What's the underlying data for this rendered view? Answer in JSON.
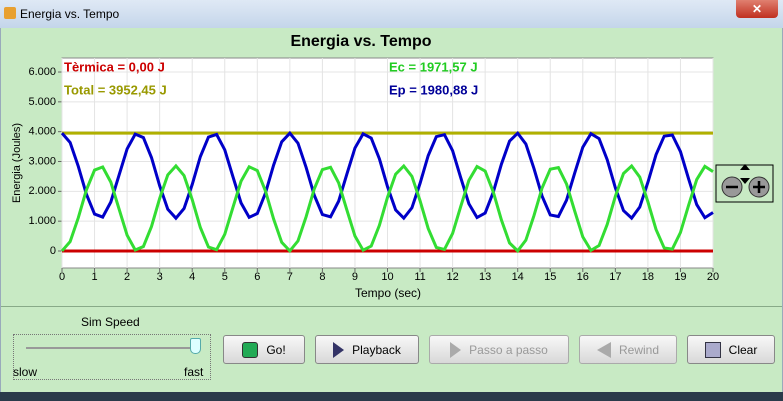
{
  "window": {
    "title": "Energia vs. Tempo"
  },
  "chart_data": {
    "type": "line",
    "title": "Energia vs. Tempo",
    "x_label": "Tempo (sec)",
    "y_label": "Energia (Joules)",
    "xlim": [
      0,
      20
    ],
    "xticks": [
      0,
      1,
      2,
      3,
      4,
      5,
      6,
      7,
      8,
      9,
      10,
      11,
      12,
      13,
      14,
      15,
      16,
      17,
      18,
      19,
      20
    ],
    "ylim": [
      -570,
      6470
    ],
    "yticks": [
      0,
      {
        "value": 1000,
        "label": "1.000"
      },
      {
        "value": 2000,
        "label": "2.000"
      },
      {
        "value": 3000,
        "label": "3.000"
      },
      {
        "value": 4000,
        "label": "4.000"
      },
      {
        "value": 5000,
        "label": "5.000"
      },
      {
        "value": 6000,
        "label": "6.000"
      }
    ],
    "grid": true,
    "x": [
      0,
      0.25,
      0.5,
      0.75,
      1,
      1.25,
      1.5,
      1.75,
      2,
      2.25,
      2.5,
      2.75,
      3,
      3.25,
      3.5,
      3.75,
      4,
      4.25,
      4.5,
      4.75,
      5,
      5.25,
      5.5,
      5.75,
      6,
      6.25,
      6.5,
      6.75,
      7,
      7.25,
      7.5,
      7.75,
      8,
      8.25,
      8.5,
      8.75,
      9,
      9.25,
      9.5,
      9.75,
      10,
      10.25,
      10.5,
      10.75,
      11,
      11.25,
      11.5,
      11.75,
      12,
      12.25,
      12.5,
      12.75,
      13,
      13.25,
      13.5,
      13.75,
      14,
      14.25,
      14.5,
      14.75,
      15,
      15.25,
      15.5,
      15.75,
      16,
      16.25,
      16.5,
      16.75,
      17,
      17.25,
      17.5,
      17.75,
      18,
      18.25,
      18.5,
      18.75,
      19,
      19.25,
      19.5,
      19.75,
      20
    ],
    "series": [
      {
        "color": "#b0b000",
        "x": [
          0,
          20
        ],
        "values": [
          3952.45,
          3952.45
        ]
      },
      {
        "color": "#cc0000",
        "x": [
          0,
          20
        ],
        "values": [
          0,
          0
        ]
      },
      {
        "color": "#0000c8",
        "values": [
          3950,
          3638,
          2840,
          1903,
          1239,
          1137,
          1643,
          2535,
          3422,
          3917,
          3803,
          3130,
          2192,
          1400,
          1100,
          1424,
          2229,
          3164,
          3819,
          3908,
          3392,
          2497,
          1614,
          1129,
          1256,
          1938,
          2876,
          3661,
          3949,
          3614,
          2802,
          1869,
          1223,
          1146,
          1672,
          2572,
          3451,
          3925,
          3786,
          3095,
          2155,
          1377,
          1101,
          1448,
          2266,
          3197,
          3835,
          3899,
          3362,
          2459,
          1585,
          1122,
          1273,
          1972,
          2913,
          3684,
          3948,
          3589,
          2765,
          1836,
          1208,
          1156,
          1703,
          2610,
          3480,
          3931,
          3768,
          3060,
          2119,
          1355,
          1103,
          1473,
          2304,
          3230,
          3849,
          3888,
          3332,
          2421,
          1556,
          1116,
          1292
        ]
      },
      {
        "color": "#33dd33",
        "values": [
          2,
          314,
          1112,
          2049,
          2713,
          2815,
          2309,
          1417,
          530,
          35,
          149,
          822,
          1760,
          2552,
          2852,
          2528,
          1723,
          788,
          133,
          44,
          560,
          1456,
          2338,
          2823,
          2696,
          2015,
          1076,
          291,
          3,
          338,
          1150,
          2083,
          2729,
          2806,
          2280,
          1380,
          501,
          27,
          166,
          857,
          1797,
          2575,
          2851,
          2504,
          1686,
          755,
          117,
          53,
          590,
          1493,
          2367,
          2830,
          2679,
          1980,
          1039,
          268,
          4,
          363,
          1187,
          2116,
          2744,
          2796,
          2249,
          1342,
          472,
          21,
          184,
          892,
          1833,
          2597,
          2849,
          2479,
          1648,
          722,
          103,
          64,
          620,
          1531,
          2396,
          2836,
          2660
        ]
      }
    ],
    "annotations": [
      {
        "text": "Tèrmica = 0,00 J",
        "color": "#cc0000"
      },
      {
        "text": "Total = 3952,45 J",
        "color": "#999900"
      },
      {
        "text": "Ec = 1971,57 J",
        "color": "#22cc22"
      },
      {
        "text": "Ep = 1980,88 J",
        "color": "#000099"
      }
    ]
  },
  "controls": {
    "slider_label": "Sim Speed",
    "slider_min": "slow",
    "slider_max": "fast",
    "buttons": [
      "Go!",
      "Playback",
      "Passo a passo",
      "Rewind",
      "Clear"
    ]
  }
}
